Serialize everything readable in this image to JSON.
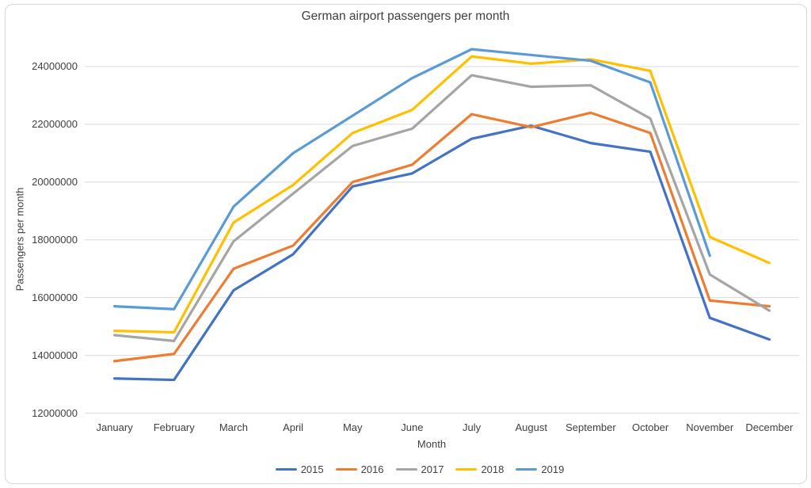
{
  "chart_data": {
    "type": "line",
    "title": "German airport passengers per month",
    "xlabel": "Month",
    "ylabel": "Passengers per month",
    "categories": [
      "January",
      "February",
      "March",
      "April",
      "May",
      "June",
      "July",
      "August",
      "September",
      "October",
      "November",
      "December"
    ],
    "yticks": [
      12000000,
      14000000,
      16000000,
      18000000,
      20000000,
      22000000,
      24000000
    ],
    "ylim": [
      12000000,
      25000000
    ],
    "grid": "horizontal",
    "gridline_color": "#d9d9d9",
    "legend_position": "bottom",
    "series": [
      {
        "name": "2015",
        "color": "#4472C4",
        "values": [
          13200000,
          13150000,
          16250000,
          17500000,
          19850000,
          20300000,
          21500000,
          21950000,
          21350000,
          21050000,
          15300000,
          14550000
        ]
      },
      {
        "name": "2016",
        "color": "#ED7D31",
        "values": [
          13800000,
          14050000,
          17000000,
          17800000,
          20000000,
          20600000,
          22350000,
          21900000,
          22400000,
          21700000,
          15900000,
          15700000
        ]
      },
      {
        "name": "2017",
        "color": "#A5A5A5",
        "values": [
          14700000,
          14500000,
          17950000,
          19600000,
          21250000,
          21850000,
          23700000,
          23300000,
          23350000,
          22200000,
          16800000,
          15550000
        ]
      },
      {
        "name": "2018",
        "color": "#FFC000",
        "values": [
          14850000,
          14800000,
          18600000,
          19900000,
          21700000,
          22500000,
          24350000,
          24100000,
          24250000,
          23850000,
          18100000,
          17200000
        ]
      },
      {
        "name": "2019",
        "color": "#5B9BD5",
        "values": [
          15700000,
          15600000,
          19150000,
          21000000,
          22300000,
          23600000,
          24600000,
          24400000,
          24200000,
          23450000,
          17450000,
          null
        ]
      }
    ]
  }
}
